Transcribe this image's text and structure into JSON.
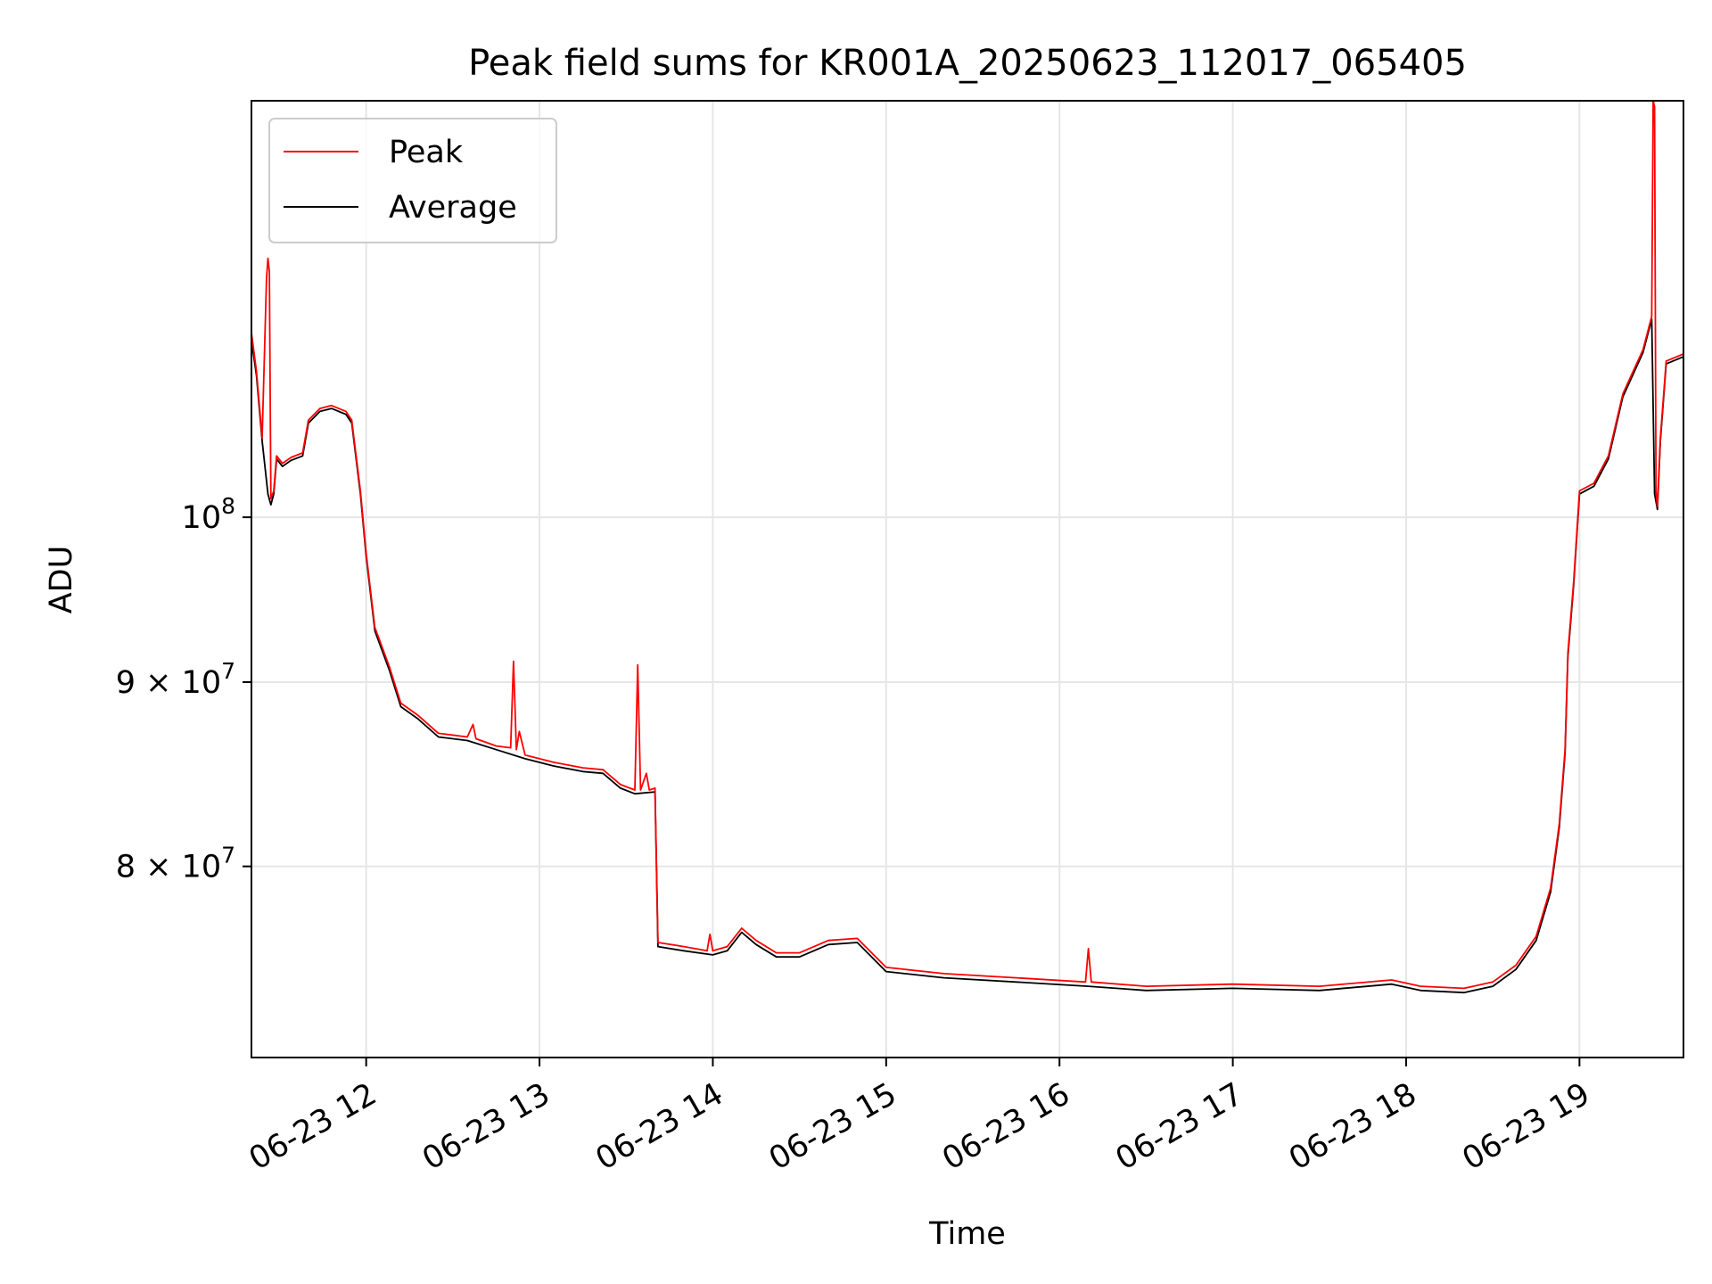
{
  "chart_data": {
    "type": "line",
    "title": "Peak field sums for KR001A_20250623_112017_065405",
    "xlabel": "Time",
    "ylabel": "ADU",
    "yscale": "log",
    "xlim": [
      "2025-06-23T11:20:17",
      "2025-06-23T19:36:00"
    ],
    "ylim": [
      70800000,
      130500000
    ],
    "grid": true,
    "legend_position": "upper-left",
    "x_ticks": [
      {
        "label": "06-23 12",
        "t": "2025-06-23T12:00:00"
      },
      {
        "label": "06-23 13",
        "t": "2025-06-23T13:00:00"
      },
      {
        "label": "06-23 14",
        "t": "2025-06-23T14:00:00"
      },
      {
        "label": "06-23 15",
        "t": "2025-06-23T15:00:00"
      },
      {
        "label": "06-23 16",
        "t": "2025-06-23T16:00:00"
      },
      {
        "label": "06-23 17",
        "t": "2025-06-23T17:00:00"
      },
      {
        "label": "06-23 18",
        "t": "2025-06-23T18:00:00"
      },
      {
        "label": "06-23 19",
        "t": "2025-06-23T19:00:00"
      }
    ],
    "y_ticks": [
      {
        "base": "10",
        "exp": "8",
        "value": 100000000
      },
      {
        "mantissa": "9",
        "base": "10",
        "exp": "7",
        "value": 90000000
      },
      {
        "mantissa": "8",
        "base": "10",
        "exp": "7",
        "value": 80000000
      }
    ],
    "series": [
      {
        "name": "Average",
        "color": "#000000",
        "points": [
          [
            "2025-06-23T11:20:17",
            112000000
          ],
          [
            "2025-06-23T11:22:00",
            109500000
          ],
          [
            "2025-06-23T11:24:00",
            105000000
          ],
          [
            "2025-06-23T11:26:00",
            101500000
          ],
          [
            "2025-06-23T11:27:00",
            100800000
          ],
          [
            "2025-06-23T11:28:00",
            101500000
          ],
          [
            "2025-06-23T11:29:00",
            103800000
          ],
          [
            "2025-06-23T11:31:00",
            103300000
          ],
          [
            "2025-06-23T11:34:00",
            103700000
          ],
          [
            "2025-06-23T11:38:00",
            104000000
          ],
          [
            "2025-06-23T11:40:00",
            106200000
          ],
          [
            "2025-06-23T11:44:00",
            107000000
          ],
          [
            "2025-06-23T11:48:00",
            107200000
          ],
          [
            "2025-06-23T11:53:00",
            106800000
          ],
          [
            "2025-06-23T11:55:00",
            106200000
          ],
          [
            "2025-06-23T11:58:00",
            101500000
          ],
          [
            "2025-06-23T12:00:00",
            97500000
          ],
          [
            "2025-06-23T12:03:00",
            93000000
          ],
          [
            "2025-06-23T12:08:00",
            90700000
          ],
          [
            "2025-06-23T12:12:00",
            88600000
          ],
          [
            "2025-06-23T12:18:00",
            87900000
          ],
          [
            "2025-06-23T12:25:00",
            86900000
          ],
          [
            "2025-06-23T12:35:00",
            86700000
          ],
          [
            "2025-06-23T12:45:00",
            86200000
          ],
          [
            "2025-06-23T12:55:00",
            85700000
          ],
          [
            "2025-06-23T13:05:00",
            85300000
          ],
          [
            "2025-06-23T13:15:00",
            85000000
          ],
          [
            "2025-06-23T13:22:00",
            84900000
          ],
          [
            "2025-06-23T13:28:00",
            84100000
          ],
          [
            "2025-06-23T13:33:00",
            83800000
          ],
          [
            "2025-06-23T13:40:00",
            83900000
          ],
          [
            "2025-06-23T13:41:00",
            76000000
          ],
          [
            "2025-06-23T13:50:00",
            75800000
          ],
          [
            "2025-06-23T14:00:00",
            75600000
          ],
          [
            "2025-06-23T14:05:00",
            75800000
          ],
          [
            "2025-06-23T14:10:00",
            76700000
          ],
          [
            "2025-06-23T14:15:00",
            76100000
          ],
          [
            "2025-06-23T14:22:00",
            75500000
          ],
          [
            "2025-06-23T14:30:00",
            75500000
          ],
          [
            "2025-06-23T14:40:00",
            76100000
          ],
          [
            "2025-06-23T14:50:00",
            76200000
          ],
          [
            "2025-06-23T15:00:00",
            74800000
          ],
          [
            "2025-06-23T15:20:00",
            74500000
          ],
          [
            "2025-06-23T15:45:00",
            74300000
          ],
          [
            "2025-06-23T16:10:00",
            74100000
          ],
          [
            "2025-06-23T16:30:00",
            73900000
          ],
          [
            "2025-06-23T17:00:00",
            74000000
          ],
          [
            "2025-06-23T17:30:00",
            73900000
          ],
          [
            "2025-06-23T17:55:00",
            74200000
          ],
          [
            "2025-06-23T18:05:00",
            73900000
          ],
          [
            "2025-06-23T18:20:00",
            73800000
          ],
          [
            "2025-06-23T18:30:00",
            74100000
          ],
          [
            "2025-06-23T18:38:00",
            74900000
          ],
          [
            "2025-06-23T18:45:00",
            76300000
          ],
          [
            "2025-06-23T18:50:00",
            78700000
          ],
          [
            "2025-06-23T18:53:00",
            82000000
          ],
          [
            "2025-06-23T18:55:00",
            86000000
          ],
          [
            "2025-06-23T18:56:00",
            91500000
          ],
          [
            "2025-06-23T18:58:00",
            95800000
          ],
          [
            "2025-06-23T19:00:00",
            101500000
          ],
          [
            "2025-06-23T19:05:00",
            102000000
          ],
          [
            "2025-06-23T19:10:00",
            103800000
          ],
          [
            "2025-06-23T19:15:00",
            108000000
          ],
          [
            "2025-06-23T19:22:00",
            111100000
          ],
          [
            "2025-06-23T19:25:00",
            113500000
          ],
          [
            "2025-06-23T19:26:00",
            101500000
          ],
          [
            "2025-06-23T19:27:00",
            100500000
          ],
          [
            "2025-06-23T19:28:00",
            105000000
          ],
          [
            "2025-06-23T19:30:00",
            110300000
          ],
          [
            "2025-06-23T19:36:00",
            110800000
          ]
        ]
      },
      {
        "name": "Peak",
        "color": "#ff0000",
        "points": [
          [
            "2025-06-23T11:20:17",
            112500000
          ],
          [
            "2025-06-23T11:22:00",
            109800000
          ],
          [
            "2025-06-23T11:24:00",
            105200000
          ],
          [
            "2025-06-23T11:25:30",
            116500000
          ],
          [
            "2025-06-23T11:26:00",
            118000000
          ],
          [
            "2025-06-23T11:26:30",
            117000000
          ],
          [
            "2025-06-23T11:27:00",
            101200000
          ],
          [
            "2025-06-23T11:28:00",
            101700000
          ],
          [
            "2025-06-23T11:29:00",
            104000000
          ],
          [
            "2025-06-23T11:31:00",
            103500000
          ],
          [
            "2025-06-23T11:34:00",
            103900000
          ],
          [
            "2025-06-23T11:38:00",
            104200000
          ],
          [
            "2025-06-23T11:40:00",
            106400000
          ],
          [
            "2025-06-23T11:44:00",
            107200000
          ],
          [
            "2025-06-23T11:48:00",
            107400000
          ],
          [
            "2025-06-23T11:53:00",
            107000000
          ],
          [
            "2025-06-23T11:55:00",
            106400000
          ],
          [
            "2025-06-23T11:58:00",
            101700000
          ],
          [
            "2025-06-23T12:00:00",
            97700000
          ],
          [
            "2025-06-23T12:03:00",
            93200000
          ],
          [
            "2025-06-23T12:08:00",
            90900000
          ],
          [
            "2025-06-23T12:12:00",
            88800000
          ],
          [
            "2025-06-23T12:18:00",
            88100000
          ],
          [
            "2025-06-23T12:25:00",
            87100000
          ],
          [
            "2025-06-23T12:35:00",
            86900000
          ],
          [
            "2025-06-23T12:37:00",
            87600000
          ],
          [
            "2025-06-23T12:38:00",
            86800000
          ],
          [
            "2025-06-23T12:45:00",
            86400000
          ],
          [
            "2025-06-23T12:50:00",
            86300000
          ],
          [
            "2025-06-23T12:51:00",
            91200000
          ],
          [
            "2025-06-23T12:52:00",
            86200000
          ],
          [
            "2025-06-23T12:53:00",
            87200000
          ],
          [
            "2025-06-23T12:55:00",
            85900000
          ],
          [
            "2025-06-23T13:05:00",
            85500000
          ],
          [
            "2025-06-23T13:15:00",
            85200000
          ],
          [
            "2025-06-23T13:22:00",
            85100000
          ],
          [
            "2025-06-23T13:28:00",
            84300000
          ],
          [
            "2025-06-23T13:33:00",
            84000000
          ],
          [
            "2025-06-23T13:34:00",
            91000000
          ],
          [
            "2025-06-23T13:35:00",
            84000000
          ],
          [
            "2025-06-23T13:37:00",
            84900000
          ],
          [
            "2025-06-23T13:38:00",
            84000000
          ],
          [
            "2025-06-23T13:40:00",
            84100000
          ],
          [
            "2025-06-23T13:41:00",
            76200000
          ],
          [
            "2025-06-23T13:50:00",
            76000000
          ],
          [
            "2025-06-23T13:58:00",
            75800000
          ],
          [
            "2025-06-23T13:59:00",
            76600000
          ],
          [
            "2025-06-23T14:00:00",
            75800000
          ],
          [
            "2025-06-23T14:05:00",
            76000000
          ],
          [
            "2025-06-23T14:10:00",
            76900000
          ],
          [
            "2025-06-23T14:15:00",
            76300000
          ],
          [
            "2025-06-23T14:22:00",
            75700000
          ],
          [
            "2025-06-23T14:30:00",
            75700000
          ],
          [
            "2025-06-23T14:40:00",
            76300000
          ],
          [
            "2025-06-23T14:50:00",
            76400000
          ],
          [
            "2025-06-23T15:00:00",
            75000000
          ],
          [
            "2025-06-23T15:20:00",
            74700000
          ],
          [
            "2025-06-23T15:45:00",
            74500000
          ],
          [
            "2025-06-23T16:09:00",
            74300000
          ],
          [
            "2025-06-23T16:10:00",
            75900000
          ],
          [
            "2025-06-23T16:11:00",
            74300000
          ],
          [
            "2025-06-23T16:30:00",
            74100000
          ],
          [
            "2025-06-23T17:00:00",
            74200000
          ],
          [
            "2025-06-23T17:30:00",
            74100000
          ],
          [
            "2025-06-23T17:55:00",
            74400000
          ],
          [
            "2025-06-23T18:05:00",
            74100000
          ],
          [
            "2025-06-23T18:20:00",
            74000000
          ],
          [
            "2025-06-23T18:30:00",
            74300000
          ],
          [
            "2025-06-23T18:38:00",
            75100000
          ],
          [
            "2025-06-23T18:45:00",
            76500000
          ],
          [
            "2025-06-23T18:50:00",
            78900000
          ],
          [
            "2025-06-23T18:53:00",
            82200000
          ],
          [
            "2025-06-23T18:55:00",
            86200000
          ],
          [
            "2025-06-23T18:56:00",
            91700000
          ],
          [
            "2025-06-23T18:58:00",
            96000000
          ],
          [
            "2025-06-23T19:00:00",
            101700000
          ],
          [
            "2025-06-23T19:05:00",
            102200000
          ],
          [
            "2025-06-23T19:10:00",
            104000000
          ],
          [
            "2025-06-23T19:15:00",
            108200000
          ],
          [
            "2025-06-23T19:22:00",
            111300000
          ],
          [
            "2025-06-23T19:25:00",
            113700000
          ],
          [
            "2025-06-23T19:25:30",
            130500000
          ],
          [
            "2025-06-23T19:26:00",
            130000000
          ],
          [
            "2025-06-23T19:26:30",
            101700000
          ],
          [
            "2025-06-23T19:27:00",
            100700000
          ],
          [
            "2025-06-23T19:28:00",
            105200000
          ],
          [
            "2025-06-23T19:30:00",
            110500000
          ],
          [
            "2025-06-23T19:36:00",
            111000000
          ]
        ]
      }
    ],
    "legend": [
      {
        "label": "Peak",
        "color": "#ff0000"
      },
      {
        "label": "Average",
        "color": "#000000"
      }
    ]
  }
}
